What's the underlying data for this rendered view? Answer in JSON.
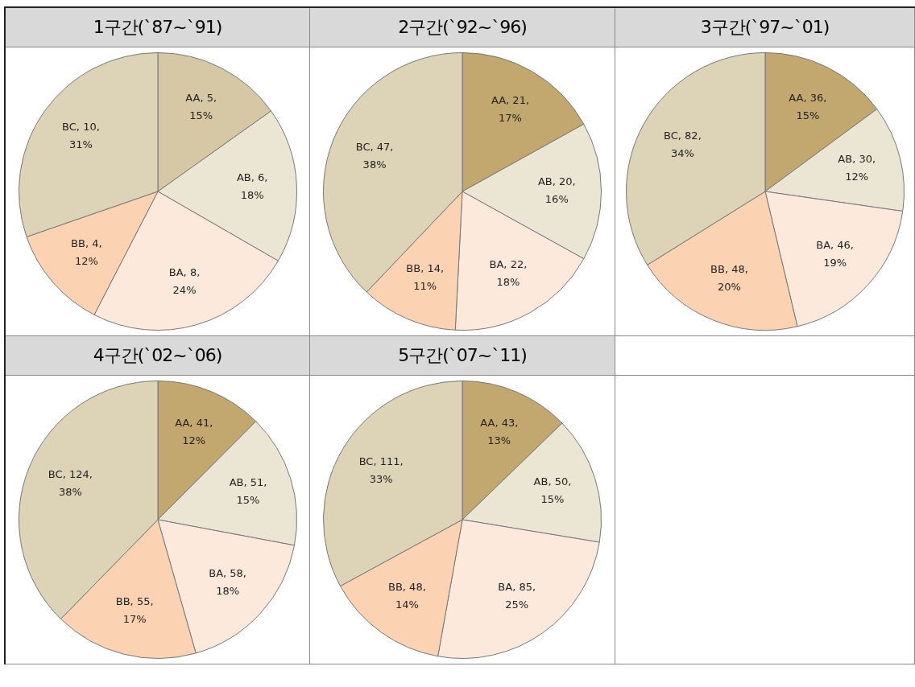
{
  "chart_data": [
    {
      "type": "pie",
      "title": "1구간(`87~`91)",
      "categories": [
        "AA",
        "AB",
        "BA",
        "BB",
        "BC"
      ],
      "values": [
        5,
        6,
        8,
        4,
        10
      ],
      "colors": [
        "#d6c8a4",
        "#ebe6d4",
        "#fce9dc",
        "#fbd3b2",
        "#ddd3b7"
      ],
      "value_labels": [
        ", 5, 15%",
        ", 6, 18%",
        ", 8, 24%",
        ", 4, 12%",
        ", 10, 31%"
      ]
    },
    {
      "type": "pie",
      "title": "2구간(`92~`96)",
      "categories": [
        "AA",
        "AB",
        "BA",
        "BB",
        "BC"
      ],
      "values": [
        21,
        20,
        22,
        14,
        47
      ],
      "colors": [
        "#c2a86f",
        "#ebe6d4",
        "#fce9dc",
        "#fbd3b2",
        "#ddd3b7"
      ],
      "value_labels": [
        ", 21, 17%",
        ", 20, 16%",
        ", 22, 18%",
        ", 14, 11%",
        ", 47, 38%"
      ]
    },
    {
      "type": "pie",
      "title": "3구간(`97~`01)",
      "categories": [
        "AA",
        "AB",
        "BA",
        "BB",
        "BC"
      ],
      "values": [
        36,
        30,
        46,
        48,
        82
      ],
      "colors": [
        "#c2a86f",
        "#ebe6d4",
        "#fce9dc",
        "#fbd3b2",
        "#ddd3b7"
      ],
      "value_labels": [
        ", 36, 15%",
        ", 30, 12%",
        ", 46, 19%",
        ", 48, 20%",
        ", 82, 34%"
      ]
    },
    {
      "type": "pie",
      "title": "4구간(`02~`06)",
      "categories": [
        "AA",
        "AB",
        "BA",
        "BB",
        "BC"
      ],
      "values": [
        41,
        51,
        58,
        55,
        124
      ],
      "colors": [
        "#c2a86f",
        "#ebe6d4",
        "#fce9dc",
        "#fbd3b2",
        "#ddd3b7"
      ],
      "value_labels": [
        ", 41, 12%",
        ", 51, 15%",
        ", 58, 18%",
        ", 55, 17%",
        ", 124, 38%"
      ]
    },
    {
      "type": "pie",
      "title": "5구간(`07~`11)",
      "categories": [
        "AA",
        "AB",
        "BA",
        "BB",
        "BC"
      ],
      "values": [
        43,
        50,
        85,
        48,
        111
      ],
      "colors": [
        "#c2a86f",
        "#ebe6d4",
        "#fce9dc",
        "#fbd3b2",
        "#ddd3b7"
      ],
      "value_labels": [
        ", 43, 13%",
        ", 50, 15%",
        ", 85, 25%",
        ", 48, 14%",
        ", 111, 33%"
      ]
    }
  ]
}
